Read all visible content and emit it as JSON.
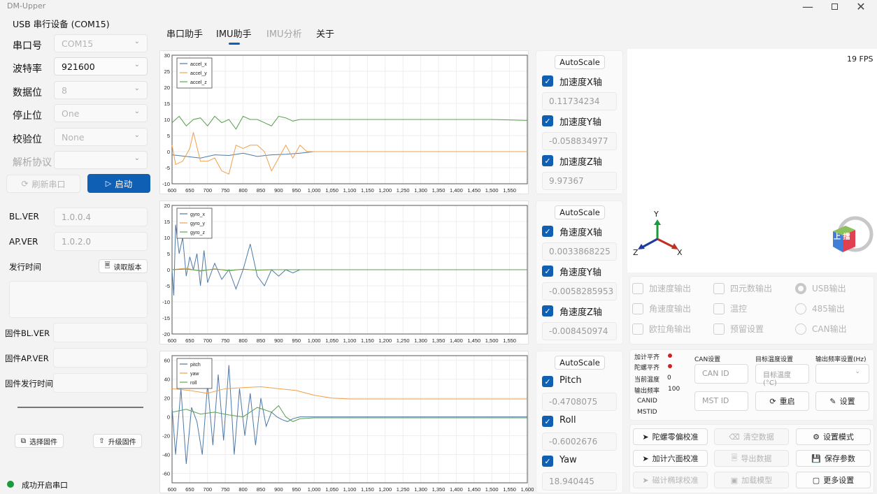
{
  "window": {
    "title": "DM-Upper"
  },
  "sidebar": {
    "device_name": "USB 串行设备 (COM15)",
    "rows": [
      {
        "label": "串口号",
        "value": "COM15",
        "enabled": false
      },
      {
        "label": "波特率",
        "value": "921600",
        "enabled": true
      },
      {
        "label": "数据位",
        "value": "8",
        "enabled": false
      },
      {
        "label": "停止位",
        "value": "One",
        "enabled": false
      },
      {
        "label": "校验位",
        "value": "None",
        "enabled": false
      },
      {
        "label": "解析协议",
        "value": "",
        "enabled": false
      }
    ],
    "refresh_label": "刷新串口",
    "start_label": "启动",
    "bl_ver_label": "BL.VER",
    "bl_ver_value": "1.0.0.4",
    "ap_ver_label": "AP.VER",
    "ap_ver_value": "1.0.2.0",
    "release_time_label": "发行时间",
    "read_version_label": "读取版本",
    "fw_bl_label": "固件BL.VER",
    "fw_ap_label": "固件AP.VER",
    "fw_time_label": "固件发行时间",
    "select_fw_label": "选择固件",
    "upgrade_fw_label": "升级固件",
    "status_text": "成功开启串口",
    "status_color": "#1a9a3a"
  },
  "tabs": [
    "串口助手",
    "IMU助手",
    "IMU分析",
    "关于"
  ],
  "active_tab": "IMU助手",
  "colors": {
    "blue": "#4e79a7",
    "orange": "#f0a04b",
    "green": "#59a14f",
    "accent": "#0f5fb5"
  },
  "chart_data": [
    {
      "type": "line",
      "ylim": [
        -10,
        30
      ],
      "yticks": [
        -10,
        -5,
        0,
        5,
        10,
        15,
        20,
        25,
        30
      ],
      "xlim": [
        600,
        1600
      ],
      "xticks": [
        "600",
        "650",
        "700",
        "750",
        "800",
        "850",
        "900",
        "950",
        "1,000",
        "1,050",
        "1,100",
        "1,150",
        "1,200",
        "1,250",
        "1,300",
        "1,350",
        "1,400",
        "1,450",
        "1,500",
        "1,550"
      ],
      "series": [
        {
          "name": "accel_x",
          "x": [
            600,
            640,
            680,
            720,
            760,
            800,
            840,
            880,
            920,
            960,
            1000,
            1050,
            1100,
            1150,
            1200,
            1300,
            1400,
            1500,
            1600
          ],
          "y": [
            -1,
            -1.5,
            -2,
            -1,
            -1.2,
            -0.5,
            -1.5,
            -1,
            -0.8,
            -0.5,
            0,
            0,
            0,
            0,
            0,
            0,
            0,
            0,
            0
          ]
        },
        {
          "name": "accel_y",
          "x": [
            600,
            610,
            630,
            650,
            660,
            680,
            700,
            720,
            740,
            760,
            780,
            800,
            820,
            840,
            860,
            880,
            900,
            920,
            940,
            960,
            980,
            1000,
            1050,
            1100,
            1200,
            1300,
            1400,
            1500,
            1600
          ],
          "y": [
            2,
            -4,
            -3,
            1,
            6,
            -3,
            -3,
            -2,
            -6,
            -7,
            2,
            1,
            2,
            2,
            0,
            -6,
            -2,
            2,
            -2,
            2,
            0,
            0,
            0,
            0,
            0,
            0,
            0,
            0,
            0
          ]
        },
        {
          "name": "accel_z",
          "x": [
            600,
            620,
            640,
            660,
            680,
            700,
            720,
            740,
            760,
            780,
            800,
            820,
            840,
            860,
            880,
            900,
            920,
            940,
            960,
            1000,
            1050,
            1100,
            1200,
            1300,
            1400,
            1500,
            1600
          ],
          "y": [
            9,
            11,
            8,
            10,
            10.5,
            8,
            11,
            9,
            10,
            7,
            11,
            10,
            10,
            9,
            8,
            11,
            10.5,
            9.5,
            10,
            10,
            10,
            10,
            10,
            10,
            10,
            10,
            9.7
          ]
        }
      ]
    },
    {
      "type": "line",
      "ylim": [
        -20,
        20
      ],
      "yticks": [
        -20,
        -15,
        -10,
        -5,
        0,
        5,
        10,
        15,
        20
      ],
      "xlim": [
        600,
        1600
      ],
      "xticks": [
        "600",
        "650",
        "700",
        "750",
        "800",
        "850",
        "900",
        "950",
        "1,000",
        "1,050",
        "1,100",
        "1,150",
        "1,200",
        "1,250",
        "1,300",
        "1,350",
        "1,400",
        "1,450",
        "1,500",
        "1,550"
      ],
      "series": [
        {
          "name": "gyro_x",
          "x": [
            600,
            605,
            610,
            620,
            630,
            640,
            650,
            660,
            670,
            680,
            690,
            700,
            720,
            740,
            760,
            780,
            800,
            820,
            840,
            860,
            880,
            900,
            920,
            940,
            960,
            1000,
            1100,
            1200,
            1300,
            1400,
            1500,
            1600
          ],
          "y": [
            0,
            -8,
            14,
            5,
            10,
            -2,
            4,
            0,
            5,
            -5,
            6,
            -4,
            2,
            -3,
            0,
            -6,
            0,
            8,
            -2,
            -5,
            0,
            -2,
            0,
            -1,
            0,
            0,
            0,
            0,
            0,
            0,
            0,
            0
          ]
        },
        {
          "name": "gyro_y",
          "x": [
            600,
            640,
            680,
            720,
            760,
            800,
            840,
            880,
            920,
            960,
            1000,
            1100,
            1200,
            1300,
            1400,
            1500,
            1600
          ],
          "y": [
            0,
            0.5,
            -0.5,
            0.3,
            -0.4,
            0.2,
            -0.2,
            0,
            0,
            0,
            0,
            0,
            0,
            0,
            0,
            0,
            0
          ]
        },
        {
          "name": "gyro_z",
          "x": [
            600,
            640,
            680,
            720,
            760,
            800,
            840,
            880,
            920,
            960,
            1000,
            1100,
            1200,
            1300,
            1400,
            1500,
            1600
          ],
          "y": [
            0,
            0.2,
            -0.3,
            0.2,
            -0.2,
            0.1,
            -0.1,
            0,
            0,
            0,
            0,
            0,
            0,
            0,
            0,
            0,
            0
          ]
        }
      ]
    },
    {
      "type": "line",
      "ylim": [
        -70,
        65
      ],
      "yticks": [
        -60,
        -40,
        -20,
        0,
        20,
        40,
        60
      ],
      "xlim": [
        600,
        1600
      ],
      "xticks": [
        "600",
        "650",
        "700",
        "750",
        "800",
        "850",
        "900",
        "950",
        "1,000",
        "1,050",
        "1,100",
        "1,150",
        "1,200",
        "1,250",
        "1,300",
        "1,350",
        "1,400",
        "1,450",
        "1,500",
        "1,550",
        "1,600"
      ],
      "series": [
        {
          "name": "pitch",
          "x": [
            600,
            610,
            625,
            640,
            655,
            670,
            685,
            700,
            715,
            730,
            745,
            760,
            775,
            790,
            805,
            820,
            835,
            850,
            865,
            880,
            895,
            910,
            925,
            940,
            960,
            1000,
            1200,
            1400,
            1600
          ],
          "y": [
            10,
            -40,
            30,
            -50,
            10,
            -5,
            -40,
            35,
            -30,
            45,
            -25,
            55,
            -40,
            30,
            -20,
            25,
            -30,
            20,
            -10,
            5,
            0,
            -3,
            -5,
            -2,
            0,
            0,
            0,
            0,
            0
          ]
        },
        {
          "name": "yaw",
          "x": [
            600,
            650,
            700,
            750,
            800,
            850,
            900,
            950,
            1000,
            1050,
            1100,
            1200,
            1400,
            1600
          ],
          "y": [
            30,
            28,
            25,
            30,
            31,
            32,
            30,
            28,
            23,
            20,
            19,
            19,
            19,
            19
          ]
        },
        {
          "name": "roll",
          "x": [
            600,
            640,
            680,
            720,
            760,
            800,
            840,
            880,
            900,
            920,
            940,
            960,
            1000,
            1200,
            1400,
            1600
          ],
          "y": [
            5,
            8,
            3,
            5,
            2,
            0,
            10,
            5,
            12,
            0,
            -5,
            -2,
            -1,
            -1,
            -1,
            -1
          ]
        }
      ]
    }
  ],
  "panels": [
    {
      "autoscale": "AutoScale",
      "items": [
        {
          "label": "加速度X轴",
          "value": "0.11734234"
        },
        {
          "label": "加速度Y轴",
          "value": "-0.058834977"
        },
        {
          "label": "加速度Z轴",
          "value": "9.97367"
        }
      ]
    },
    {
      "autoscale": "AutoScale",
      "items": [
        {
          "label": "角速度X轴",
          "value": "0.0033868225"
        },
        {
          "label": "角速度Y轴",
          "value": "-0.0058285953"
        },
        {
          "label": "角速度Z轴",
          "value": "-0.008450974"
        }
      ]
    },
    {
      "autoscale": "AutoScale",
      "items": [
        {
          "label": "Pitch",
          "value": "-0.4708075"
        },
        {
          "label": "Roll",
          "value": "-0.6002676"
        },
        {
          "label": "Yaw",
          "value": "18.940445"
        }
      ]
    }
  ],
  "view3d": {
    "fps": "19 FPS",
    "axis_x": "X",
    "axis_y": "Y",
    "axis_z": "Z",
    "cube_glyphs": "上 擂"
  },
  "outputs": {
    "col1": [
      "加速度输出",
      "角速度输出",
      "欧拉角输出"
    ],
    "col2": [
      "四元数输出",
      "温控",
      "预留设置"
    ],
    "col3": [
      "USB输出",
      "485输出",
      "CAN输出"
    ]
  },
  "status": {
    "accel_cal": "加计平齐",
    "gyro_cal": "陀螺平齐",
    "cur_temp_label": "当前温度",
    "cur_temp_value": "0",
    "out_freq_label": "输出频率",
    "out_freq_value": "100",
    "canid_label": "CANID",
    "mstid_label": "MSTID",
    "can_settings": "CAN设置",
    "target_temp": "目标温度设置",
    "freq_setting": "输出频率设置(Hz)",
    "can_id_ph": "CAN ID",
    "mst_id_ph": "MST ID",
    "target_temp_ph": "目标温度(°C)",
    "restart": "重启",
    "settings": "设置"
  },
  "actions": {
    "gyro_zero": "陀螺零偏校准",
    "six_face": "加计六面校准",
    "mag_ellipse": "磁计椭球校准",
    "clear": "清空数据",
    "export": "导出数据",
    "load_model": "加载模型",
    "set_mode": "设置模式",
    "save_params": "保存参数",
    "more": "更多设置"
  }
}
